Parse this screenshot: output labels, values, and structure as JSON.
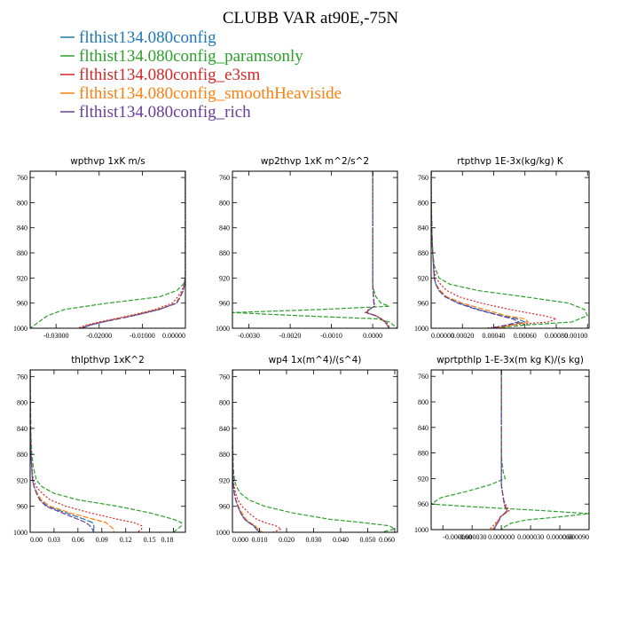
{
  "title": "CLUBB VAR at90E,-75N",
  "legend": [
    {
      "label": "flthist134.080config",
      "color": "#1f77b4"
    },
    {
      "label": "flthist134.080config_paramsonly",
      "color": "#2ca02c"
    },
    {
      "label": "flthist134.080config_e3sm",
      "color": "#d62728"
    },
    {
      "label": "flthist134.080config_smoothHeaviside",
      "color": "#ff7f0e"
    },
    {
      "label": "flthist134.080config_rich",
      "color": "#6a3d9a"
    }
  ],
  "chart_data": [
    {
      "type": "line",
      "title": "wpthvp  1xK m/s",
      "xlim": [
        -0.036,
        0.0
      ],
      "ylim": [
        1000,
        750
      ],
      "xticks": [
        -0.03,
        -0.02,
        -0.01,
        0.0
      ],
      "xtick_labels": [
        "-0.03000",
        "-0.02000",
        "-0.01000",
        "0.00000"
      ],
      "yticks": [
        760,
        800,
        840,
        880,
        920,
        960,
        1000
      ],
      "y": [
        750,
        800,
        850,
        900,
        920,
        930,
        940,
        950,
        960,
        970,
        980,
        990,
        995,
        1000
      ],
      "series": [
        {
          "values": [
            0,
            0,
            0,
            0,
            0,
            -0.0002,
            -0.0005,
            -0.0012,
            -0.002,
            -0.006,
            -0.012,
            -0.019,
            -0.022,
            -0.024
          ]
        },
        {
          "values": [
            0,
            0,
            0,
            0,
            0,
            -0.0005,
            -0.002,
            -0.006,
            -0.018,
            -0.028,
            -0.032,
            -0.034,
            -0.035,
            -0.036
          ]
        },
        {
          "values": [
            0,
            0,
            0,
            0,
            0,
            -0.0003,
            -0.0008,
            -0.0018,
            -0.003,
            -0.007,
            -0.013,
            -0.02,
            -0.023,
            -0.025
          ]
        },
        {
          "values": [
            0,
            0,
            0,
            0,
            0,
            -0.0002,
            -0.0006,
            -0.0013,
            -0.0022,
            -0.0063,
            -0.0125,
            -0.0195,
            -0.0225,
            -0.0245
          ]
        },
        {
          "values": [
            0,
            0,
            0,
            0,
            0,
            -0.0002,
            -0.0005,
            -0.0012,
            -0.002,
            -0.006,
            -0.012,
            -0.0192,
            -0.0222,
            -0.0242
          ]
        }
      ]
    },
    {
      "type": "line",
      "title": "wp2thvp  1xK m^2/s^2",
      "xlim": [
        -0.0034,
        0.0006
      ],
      "ylim": [
        1000,
        750
      ],
      "xticks": [
        -0.003,
        -0.002,
        -0.001,
        0.0
      ],
      "xtick_labels": [
        "-0.0030",
        "-0.0020",
        "-0.0010",
        "0.0000"
      ],
      "yticks": [
        760,
        800,
        840,
        880,
        920,
        960,
        1000
      ],
      "y": [
        750,
        800,
        850,
        900,
        920,
        930,
        940,
        950,
        960,
        965,
        970,
        975,
        980,
        985,
        990,
        995,
        1000
      ],
      "series": [
        {
          "values": [
            0,
            0,
            0,
            0,
            0,
            0,
            1e-05,
            2e-05,
            3e-05,
            4e-05,
            -8e-05,
            -0.00015,
            8e-05,
            0.0002,
            0.0003,
            0.00035,
            0.0004
          ]
        },
        {
          "values": [
            0,
            0,
            0,
            0,
            0,
            0,
            3e-05,
            8e-05,
            0.0002,
            0.0004,
            -0.0012,
            -0.0034,
            -0.0018,
            0.0001,
            0.0004,
            0.0005,
            0.0006
          ]
        },
        {
          "values": [
            0,
            0,
            0,
            0,
            0,
            0,
            1e-05,
            2e-05,
            4e-05,
            5e-05,
            -0.0001,
            -0.00018,
            6e-05,
            0.00022,
            0.00033,
            0.00038,
            0.00042
          ]
        },
        {
          "values": [
            0,
            0,
            0,
            0,
            0,
            0,
            1e-05,
            2e-05,
            3e-05,
            4e-05,
            -9e-05,
            -0.00016,
            7e-05,
            0.00021,
            0.00031,
            0.00036,
            0.0004
          ]
        },
        {
          "values": [
            0,
            0,
            0,
            0,
            0,
            0,
            1e-05,
            2e-05,
            3e-05,
            4e-05,
            -8e-05,
            -0.00015,
            7e-05,
            0.0002,
            0.0003,
            0.00035,
            0.0004
          ]
        }
      ]
    },
    {
      "type": "line",
      "title": "rtpthvp  1E-3x(kg/kg) K",
      "xlim": [
        0.0,
        0.00101
      ],
      "ylim": [
        1000,
        750
      ],
      "xticks": [
        0.0,
        0.0002,
        0.0004,
        0.0006,
        0.0008,
        0.001
      ],
      "xtick_labels": [
        "0.00000",
        "0.00020",
        "0.00040",
        "0.00060",
        "0.00080",
        "0.00100"
      ],
      "yticks": [
        760,
        800,
        840,
        880,
        920,
        960,
        1000
      ],
      "y": [
        750,
        800,
        850,
        880,
        900,
        920,
        930,
        940,
        950,
        960,
        970,
        980,
        985,
        990,
        995,
        1000
      ],
      "series": [
        {
          "values": [
            0,
            0,
            5e-06,
            1e-05,
            1.5e-05,
            2e-05,
            3e-05,
            5e-05,
            9e-05,
            0.00018,
            0.0003,
            0.00045,
            0.00055,
            0.0006,
            0.0005,
            0.0004
          ]
        },
        {
          "values": [
            0,
            2e-06,
            5e-06,
            1e-05,
            2e-05,
            5e-05,
            0.00012,
            0.0003,
            0.0006,
            0.00088,
            0.00098,
            0.001,
            0.00095,
            0.0009,
            0.0006,
            0.0004
          ]
        },
        {
          "values": [
            0,
            0,
            5e-06,
            1e-05,
            1.5e-05,
            3e-05,
            6e-05,
            0.0001,
            0.00018,
            0.00032,
            0.0005,
            0.00072,
            0.0008,
            0.00075,
            0.0005,
            0.00035
          ]
        },
        {
          "values": [
            0,
            0,
            5e-06,
            1e-05,
            1.5e-05,
            2e-05,
            3e-05,
            6e-05,
            0.0001,
            0.0002,
            0.00034,
            0.00048,
            0.0006,
            0.00062,
            0.00052,
            0.00042
          ]
        },
        {
          "values": [
            0,
            0,
            5e-06,
            1e-05,
            1.5e-05,
            2e-05,
            3e-05,
            5e-05,
            9e-05,
            0.00017,
            0.00029,
            0.00044,
            0.00052,
            0.00056,
            0.00048,
            0.00038
          ]
        }
      ]
    },
    {
      "type": "line",
      "title": "thlpthvp  1xK^2",
      "xlim": [
        0.0,
        0.195
      ],
      "ylim": [
        1000,
        750
      ],
      "xticks": [
        0.0,
        0.03,
        0.06,
        0.09,
        0.12,
        0.15,
        0.18
      ],
      "xtick_labels": [
        "0.00",
        "0.03",
        "0.06",
        "0.09",
        "0.12",
        "0.15",
        "0.18"
      ],
      "yticks": [
        760,
        800,
        840,
        880,
        920,
        960,
        1000
      ],
      "y": [
        750,
        800,
        850,
        880,
        900,
        920,
        930,
        940,
        950,
        960,
        970,
        980,
        985,
        990,
        995,
        1000
      ],
      "series": [
        {
          "values": [
            0,
            0,
            0.0005,
            0.001,
            0.002,
            0.003,
            0.005,
            0.008,
            0.012,
            0.022,
            0.045,
            0.068,
            0.078,
            0.08,
            0.08,
            0.08
          ]
        },
        {
          "values": [
            0,
            0.0005,
            0.001,
            0.002,
            0.004,
            0.008,
            0.015,
            0.03,
            0.06,
            0.11,
            0.15,
            0.18,
            0.19,
            0.19,
            0.185,
            0.18
          ]
        },
        {
          "values": [
            0,
            0,
            0.0005,
            0.001,
            0.002,
            0.004,
            0.008,
            0.015,
            0.025,
            0.045,
            0.075,
            0.11,
            0.13,
            0.14,
            0.14,
            0.135
          ]
        },
        {
          "values": [
            0,
            0,
            0.0005,
            0.001,
            0.002,
            0.003,
            0.005,
            0.009,
            0.014,
            0.025,
            0.05,
            0.08,
            0.095,
            0.1,
            0.105,
            0.105
          ]
        },
        {
          "values": [
            0,
            0,
            0.0005,
            0.001,
            0.002,
            0.003,
            0.005,
            0.008,
            0.012,
            0.02,
            0.04,
            0.06,
            0.07,
            0.075,
            0.078,
            0.08
          ]
        }
      ]
    },
    {
      "type": "line",
      "title": "wp4  1x(m^4)/(s^4)",
      "xlim": [
        0.0,
        0.061
      ],
      "ylim": [
        1000,
        750
      ],
      "xticks": [
        0.0,
        0.01,
        0.02,
        0.03,
        0.04,
        0.05,
        0.06
      ],
      "xtick_labels": [
        "0.000",
        "0.010",
        "0.020",
        "0.030",
        "0.040",
        "0.050",
        "0.060"
      ],
      "yticks": [
        760,
        800,
        840,
        880,
        920,
        960,
        1000
      ],
      "y": [
        750,
        800,
        850,
        900,
        920,
        930,
        940,
        950,
        960,
        970,
        980,
        985,
        990,
        995,
        1000
      ],
      "series": [
        {
          "values": [
            0,
            0,
            0,
            0.0001,
            0.0002,
            0.0004,
            0.0007,
            0.0012,
            0.002,
            0.003,
            0.0045,
            0.006,
            0.008,
            0.009,
            0.01
          ]
        },
        {
          "values": [
            0,
            0,
            0.0001,
            0.0003,
            0.0008,
            0.0015,
            0.003,
            0.006,
            0.012,
            0.022,
            0.036,
            0.048,
            0.058,
            0.06,
            0.055
          ]
        },
        {
          "values": [
            0,
            0,
            0,
            0.0002,
            0.0004,
            0.0007,
            0.0012,
            0.002,
            0.0035,
            0.006,
            0.009,
            0.012,
            0.016,
            0.018,
            0.015
          ]
        },
        {
          "values": [
            0,
            0,
            0,
            0.0001,
            0.0002,
            0.0004,
            0.0008,
            0.0013,
            0.0022,
            0.0035,
            0.005,
            0.0065,
            0.0085,
            0.0095,
            0.011
          ]
        },
        {
          "values": [
            0,
            0,
            0,
            0.0001,
            0.0002,
            0.0004,
            0.0007,
            0.0012,
            0.002,
            0.003,
            0.0045,
            0.006,
            0.0078,
            0.0088,
            0.0098
          ]
        }
      ]
    },
    {
      "type": "line",
      "title": "wprtpthlp  1-E-3x(m kg K)/(s kg)",
      "xlim": [
        -7.2e-05,
        9e-05
      ],
      "ylim": [
        1000,
        750
      ],
      "xticks": [
        -6e-05,
        -3e-05,
        0.0,
        3e-05,
        6e-05,
        9e-05
      ],
      "xtick_labels": [
        "-0.000060",
        "-0.000030",
        "0.000000",
        "0.000030",
        "0.000060",
        "0.000090"
      ],
      "yticks": [
        760,
        800,
        840,
        880,
        920,
        960,
        1000
      ],
      "y": [
        750,
        800,
        850,
        880,
        900,
        910,
        920,
        930,
        940,
        950,
        960,
        965,
        970,
        975,
        980,
        985,
        990,
        995,
        1000
      ],
      "series": [
        {
          "values": [
            0,
            0,
            0,
            0,
            0,
            0,
            0,
            0,
            1e-06,
            2e-06,
            3e-06,
            4e-06,
            6e-06,
            3e-06,
            -1e-06,
            -2e-06,
            -4e-06,
            -6e-06,
            -8e-06
          ]
        },
        {
          "values": [
            0,
            0,
            0,
            0,
            1e-06,
            2e-06,
            4e-06,
            -1.2e-05,
            -3.5e-05,
            -6.2e-05,
            -7.2e-05,
            -2e-05,
            4e-05,
            9e-05,
            6e-05,
            2.5e-05,
            1e-05,
            4e-06,
            0
          ]
        },
        {
          "values": [
            0,
            0,
            0,
            0,
            0,
            0,
            0,
            0,
            1e-06,
            2e-06,
            4e-06,
            6e-06,
            8e-06,
            4e-06,
            -1e-06,
            -3e-06,
            -6e-06,
            -9e-06,
            -1.2e-05
          ]
        },
        {
          "values": [
            0,
            0,
            0,
            0,
            0,
            0,
            0,
            0,
            1e-06,
            2e-06,
            3e-06,
            5e-06,
            7e-06,
            4e-06,
            -1e-06,
            -3e-06,
            -5e-06,
            -7e-06,
            -9e-06
          ]
        },
        {
          "values": [
            0,
            0,
            0,
            0,
            0,
            0,
            0,
            0,
            1e-06,
            2e-06,
            3e-06,
            4e-06,
            6e-06,
            3e-06,
            -1e-06,
            -2e-06,
            -4e-06,
            -6e-06,
            -7e-06
          ]
        }
      ]
    }
  ]
}
